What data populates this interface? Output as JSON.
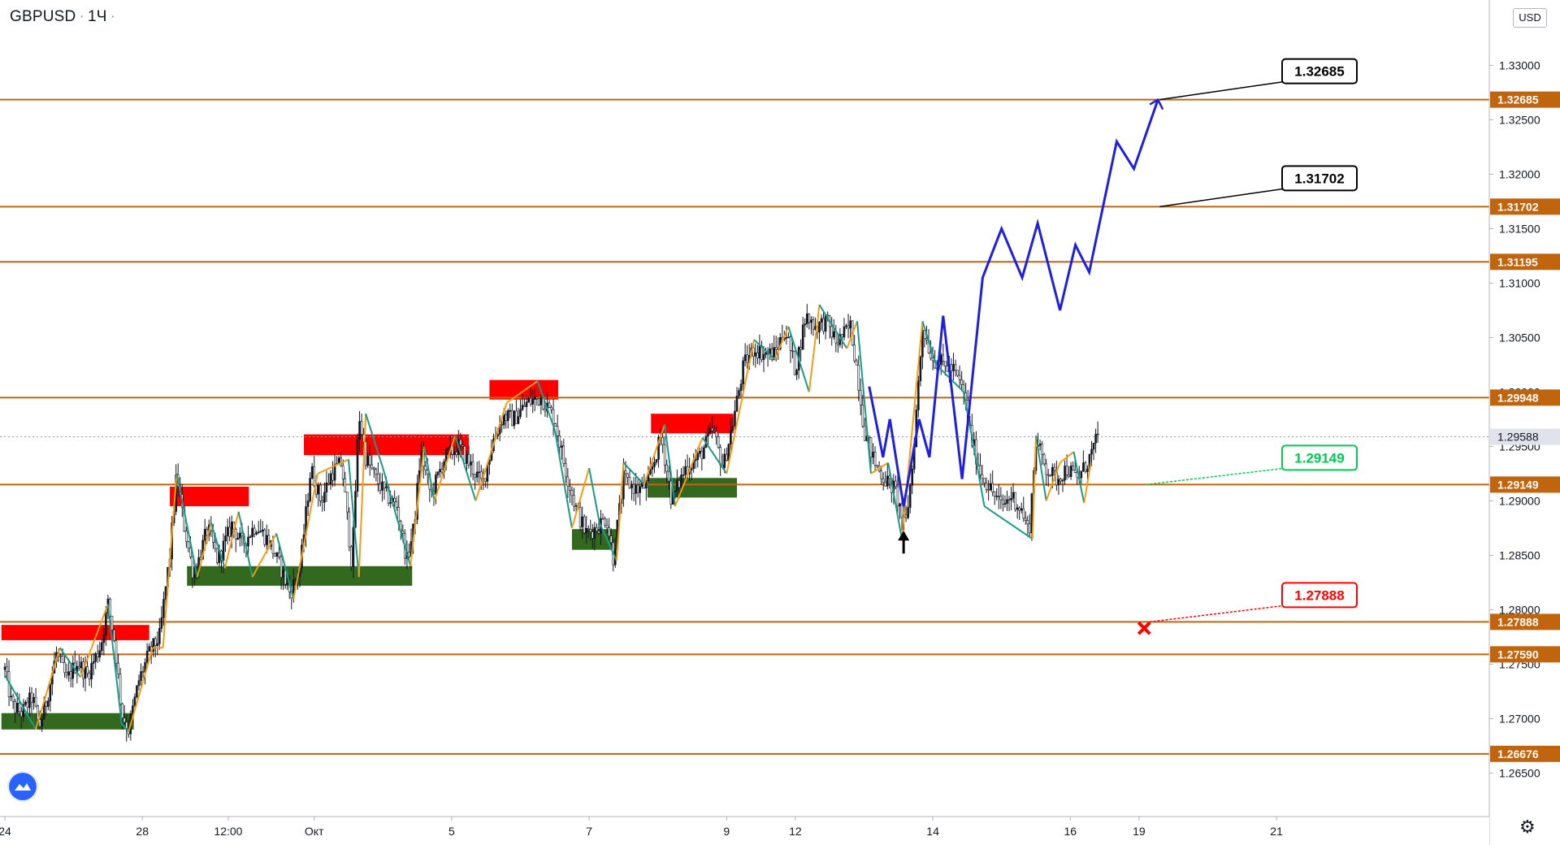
{
  "header": {
    "symbol": "GBPUSD",
    "timeframe": "1Ч",
    "currency": "USD"
  },
  "colors": {
    "level": "#c0640e",
    "supply": "#ff0000",
    "demand": "#33691e",
    "zigzag_up": "#f39c12",
    "zigzag_down": "#1a9a8a",
    "forecast": "#1f1fe0",
    "target_box": "#000000",
    "current_box": "#00c853",
    "stop_box": "#ff0000"
  },
  "chart_data": {
    "type": "candlestick",
    "symbol": "GBPUSD",
    "interval": "1H",
    "ylim": [
      1.261,
      1.336
    ],
    "price_ticks": [
      "1.26500",
      "1.27000",
      "1.27500",
      "1.28000",
      "1.28500",
      "1.29000",
      "1.29500",
      "1.30000",
      "1.30500",
      "1.31000",
      "1.31500",
      "1.32000",
      "1.32500",
      "1.33000"
    ],
    "time_ticks": [
      {
        "t": 0,
        "label": "24"
      },
      {
        "t": 4,
        "label": "28"
      },
      {
        "t": 6.5,
        "label": "12:00"
      },
      {
        "t": 9,
        "label": "Окт"
      },
      {
        "t": 13,
        "label": "5"
      },
      {
        "t": 17,
        "label": "7"
      },
      {
        "t": 21,
        "label": "9"
      },
      {
        "t": 23,
        "label": "12"
      },
      {
        "t": 27,
        "label": "14"
      },
      {
        "t": 31,
        "label": "16"
      },
      {
        "t": 33,
        "label": "19"
      },
      {
        "t": 37,
        "label": "21"
      }
    ],
    "levels": [
      {
        "price": 1.32685,
        "label": "1.32685"
      },
      {
        "price": 1.31702,
        "label": "1.31702"
      },
      {
        "price": 1.31195,
        "label": "1.31195"
      },
      {
        "price": 1.29948,
        "label": "1.29948"
      },
      {
        "price": 1.29149,
        "label": "1.29149"
      },
      {
        "price": 1.27888,
        "label": "1.27888"
      },
      {
        "price": 1.2759,
        "label": "1.27590"
      },
      {
        "price": 1.26676,
        "label": "1.26676"
      }
    ],
    "current_price": {
      "price": 1.29588,
      "label": "1.29588"
    },
    "supply_zones": [
      {
        "t1": -0.1,
        "t2": 4.2,
        "p1": 1.2772,
        "p2": 1.2786
      },
      {
        "t1": 4.8,
        "t2": 7.1,
        "p1": 1.2895,
        "p2": 1.2913
      },
      {
        "t1": 8.7,
        "t2": 13.5,
        "p1": 1.2942,
        "p2": 1.2961
      },
      {
        "t1": 14.1,
        "t2": 16.1,
        "p1": 1.2993,
        "p2": 1.3011
      },
      {
        "t1": 18.8,
        "t2": 21.2,
        "p1": 1.2962,
        "p2": 1.298
      }
    ],
    "demand_zones": [
      {
        "t1": -0.1,
        "t2": 3.75,
        "p1": 1.269,
        "p2": 1.2705
      },
      {
        "t1": 5.3,
        "t2": 11.85,
        "p1": 1.2822,
        "p2": 1.284
      },
      {
        "t1": 16.5,
        "t2": 17.8,
        "p1": 1.2855,
        "p2": 1.2874
      },
      {
        "t1": 18.7,
        "t2": 21.3,
        "p1": 1.2903,
        "p2": 1.2921
      }
    ],
    "candle_path": [
      [
        0,
        1.2745
      ],
      [
        0.2,
        1.2712
      ],
      [
        0.5,
        1.2705
      ],
      [
        0.8,
        1.272
      ],
      [
        1.0,
        1.2692
      ],
      [
        1.2,
        1.2715
      ],
      [
        1.5,
        1.276
      ],
      [
        1.8,
        1.2735
      ],
      [
        2.1,
        1.2752
      ],
      [
        2.4,
        1.274
      ],
      [
        2.8,
        1.2768
      ],
      [
        3.0,
        1.2805
      ],
      [
        3.2,
        1.277
      ],
      [
        3.4,
        1.2705
      ],
      [
        3.6,
        1.269
      ],
      [
        3.9,
        1.2735
      ],
      [
        4.2,
        1.276
      ],
      [
        4.5,
        1.2775
      ],
      [
        4.8,
        1.285
      ],
      [
        5.0,
        1.2925
      ],
      [
        5.2,
        1.288
      ],
      [
        5.5,
        1.283
      ],
      [
        5.9,
        1.2875
      ],
      [
        6.2,
        1.2845
      ],
      [
        6.6,
        1.2878
      ],
      [
        6.9,
        1.286
      ],
      [
        7.3,
        1.2878
      ],
      [
        7.7,
        1.2862
      ],
      [
        8.0,
        1.284
      ],
      [
        8.3,
        1.2815
      ],
      [
        8.6,
        1.284
      ],
      [
        8.9,
        1.293
      ],
      [
        9.2,
        1.29
      ],
      [
        9.5,
        1.2925
      ],
      [
        9.8,
        1.2935
      ],
      [
        10.1,
        1.284
      ],
      [
        10.3,
        1.298
      ],
      [
        10.5,
        1.294
      ],
      [
        10.8,
        1.292
      ],
      [
        11.1,
        1.2905
      ],
      [
        11.4,
        1.2895
      ],
      [
        11.7,
        1.2845
      ],
      [
        11.9,
        1.2875
      ],
      [
        12.1,
        1.2945
      ],
      [
        12.4,
        1.2905
      ],
      [
        12.8,
        1.294
      ],
      [
        13.2,
        1.295
      ],
      [
        13.6,
        1.293
      ],
      [
        13.9,
        1.2915
      ],
      [
        14.2,
        1.2955
      ],
      [
        14.5,
        1.2978
      ],
      [
        14.8,
        1.2975
      ],
      [
        15.2,
        1.299
      ],
      [
        15.6,
        1.2995
      ],
      [
        16.0,
        1.2975
      ],
      [
        16.3,
        1.293
      ],
      [
        16.6,
        1.2895
      ],
      [
        16.9,
        1.287
      ],
      [
        17.2,
        1.2875
      ],
      [
        17.5,
        1.2885
      ],
      [
        17.7,
        1.2848
      ],
      [
        18.0,
        1.292
      ],
      [
        18.4,
        1.291
      ],
      [
        18.7,
        1.2915
      ],
      [
        19.1,
        1.296
      ],
      [
        19.4,
        1.29
      ],
      [
        19.8,
        1.293
      ],
      [
        20.2,
        1.294
      ],
      [
        20.6,
        1.2965
      ],
      [
        20.9,
        1.293
      ],
      [
        21.2,
        1.2975
      ],
      [
        21.5,
        1.3025
      ],
      [
        21.8,
        1.304
      ],
      [
        22.1,
        1.3035
      ],
      [
        22.4,
        1.3035
      ],
      [
        22.7,
        1.3058
      ],
      [
        23.0,
        1.302
      ],
      [
        23.3,
        1.307
      ],
      [
        23.6,
        1.306
      ],
      [
        23.9,
        1.3065
      ],
      [
        24.2,
        1.3045
      ],
      [
        24.6,
        1.306
      ],
      [
        24.8,
        1.302
      ],
      [
        25.0,
        1.2965
      ],
      [
        25.3,
        1.2935
      ],
      [
        25.6,
        1.292
      ],
      [
        25.9,
        1.291
      ],
      [
        26.2,
        1.2875
      ],
      [
        26.4,
        1.293
      ],
      [
        26.7,
        1.306
      ],
      [
        27.0,
        1.303
      ],
      [
        27.3,
        1.3025
      ],
      [
        27.6,
        1.302
      ],
      [
        27.9,
        1.3
      ],
      [
        28.1,
        1.296
      ],
      [
        28.4,
        1.2925
      ],
      [
        28.7,
        1.291
      ],
      [
        29.0,
        1.2895
      ],
      [
        29.3,
        1.2905
      ],
      [
        29.6,
        1.289
      ],
      [
        29.8,
        1.287
      ],
      [
        30.0,
        1.2955
      ],
      [
        30.3,
        1.293
      ],
      [
        30.6,
        1.292
      ],
      [
        30.9,
        1.293
      ],
      [
        31.2,
        1.292
      ],
      [
        31.5,
        1.2935
      ],
      [
        31.8,
        1.2958
      ]
    ],
    "zigzag_segments": [
      [
        [
          0,
          1.274
        ],
        [
          0.9,
          1.269
        ],
        [
          1.6,
          1.2765
        ],
        [
          2.2,
          1.2738
        ],
        [
          3.0,
          1.2805
        ],
        [
          3.4,
          1.2695
        ],
        [
          3.6,
          1.2688
        ],
        [
          4.3,
          1.2765
        ],
        [
          4.6,
          1.2765
        ],
        [
          5.0,
          1.2925
        ],
        [
          5.6,
          1.283
        ],
        [
          6.0,
          1.288
        ],
        [
          6.4,
          1.2838
        ],
        [
          6.8,
          1.289
        ],
        [
          7.2,
          1.283
        ],
        [
          7.9,
          1.287
        ],
        [
          8.4,
          1.281
        ],
        [
          9.1,
          1.2925
        ],
        [
          10.0,
          1.2938
        ],
        [
          10.3,
          1.283
        ],
        [
          10.5,
          1.298
        ],
        [
          11.0,
          1.293
        ],
        [
          11.8,
          1.284
        ],
        [
          12.2,
          1.295
        ],
        [
          12.5,
          1.29
        ],
        [
          13.1,
          1.296
        ],
        [
          13.7,
          1.29
        ],
        [
          14.6,
          1.299
        ],
        [
          15.5,
          1.301
        ],
        [
          16.0,
          1.2965
        ],
        [
          16.5,
          1.2875
        ],
        [
          17.0,
          1.293
        ],
        [
          17.3,
          1.288
        ],
        [
          17.8,
          1.2845
        ],
        [
          18.0,
          1.2935
        ],
        [
          18.6,
          1.2915
        ],
        [
          19.2,
          1.297
        ],
        [
          19.5,
          1.2895
        ],
        [
          20.3,
          1.2958
        ],
        [
          21.0,
          1.2925
        ],
        [
          21.8,
          1.3048
        ],
        [
          22.4,
          1.303
        ],
        [
          22.8,
          1.306
        ],
        [
          23.4,
          1.3
        ],
        [
          23.7,
          1.308
        ],
        [
          24.5,
          1.304
        ],
        [
          24.8,
          1.3065
        ],
        [
          25.2,
          1.2925
        ],
        [
          25.7,
          1.2935
        ],
        [
          26.1,
          1.2865
        ],
        [
          26.7,
          1.3065
        ],
        [
          27.1,
          1.3025
        ],
        [
          27.9,
          1.3
        ],
        [
          28.5,
          1.2895
        ],
        [
          29.9,
          1.2865
        ],
        [
          30.0,
          1.296
        ],
        [
          30.3,
          1.29
        ],
        [
          30.7,
          1.2935
        ],
        [
          31.1,
          1.2945
        ],
        [
          31.4,
          1.2898
        ],
        [
          31.6,
          1.2935
        ]
      ]
    ],
    "forecast_path": [
      [
        25.15,
        1.3005
      ],
      [
        25.55,
        1.294
      ],
      [
        25.75,
        1.2975
      ],
      [
        26.15,
        1.2895
      ],
      [
        26.6,
        1.2975
      ],
      [
        26.9,
        1.294
      ],
      [
        27.3,
        1.307
      ],
      [
        27.85,
        1.292
      ],
      [
        28.45,
        1.3105
      ],
      [
        29.0,
        1.315
      ],
      [
        29.6,
        1.3105
      ],
      [
        30.05,
        1.3155
      ],
      [
        30.7,
        1.3075
      ],
      [
        31.15,
        1.3135
      ],
      [
        31.55,
        1.311
      ],
      [
        32.35,
        1.323
      ],
      [
        32.85,
        1.3205
      ],
      [
        33.55,
        1.32685
      ]
    ],
    "forecast_arrow": {
      "t": 26.15,
      "p": 1.2868
    },
    "callouts": [
      {
        "label": "1.32685",
        "anchor_t": 33.6,
        "anchor_p": 1.32685,
        "kind": "target"
      },
      {
        "label": "1.31702",
        "anchor_t": 33.6,
        "anchor_p": 1.31702,
        "kind": "target"
      },
      {
        "label": "1.29149",
        "anchor_t": 33.2,
        "anchor_p": 1.29149,
        "kind": "current"
      },
      {
        "label": "1.27888",
        "anchor_t": 33.3,
        "anchor_p": 1.27888,
        "kind": "stop"
      }
    ],
    "stop_marker": {
      "t": 33.15,
      "p": 1.2783
    }
  }
}
